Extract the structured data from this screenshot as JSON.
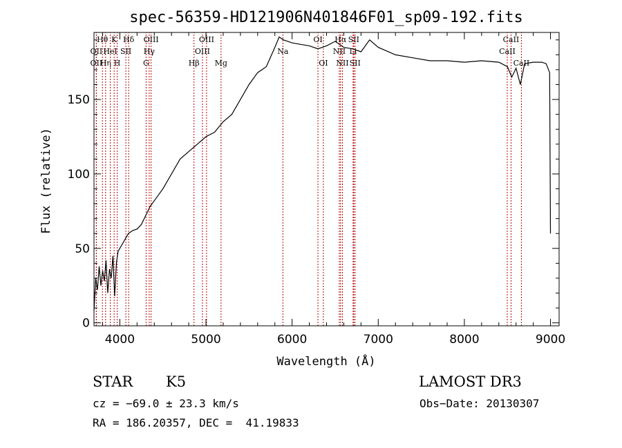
{
  "chart_data": {
    "type": "line",
    "title": "spec-56359-HD121906N401846F01_sp09-192.fits",
    "xlabel": "Wavelength (Å)",
    "ylabel": "Flux (relative)",
    "xlim": [
      3700,
      9100
    ],
    "ylim": [
      -2,
      195
    ],
    "xticks": [
      4000,
      5000,
      6000,
      7000,
      8000,
      9000
    ],
    "xtick_labels": [
      "4000",
      "5000",
      "6000",
      "7000",
      "8000",
      "9000"
    ],
    "yticks": [
      0,
      50,
      100,
      150
    ],
    "ytick_labels": [
      "0",
      "50",
      "100",
      "150"
    ],
    "grid": false,
    "series": [
      {
        "name": "flux",
        "x": [
          3700,
          3720,
          3740,
          3760,
          3780,
          3800,
          3820,
          3840,
          3860,
          3880,
          3900,
          3920,
          3940,
          3960,
          3980,
          4000,
          4050,
          4100,
          4150,
          4200,
          4250,
          4300,
          4350,
          4400,
          4450,
          4500,
          4600,
          4700,
          4800,
          4900,
          5000,
          5100,
          5200,
          5300,
          5400,
          5500,
          5600,
          5700,
          5800,
          5850,
          5900,
          5950,
          6000,
          6100,
          6200,
          6300,
          6400,
          6500,
          6600,
          6700,
          6800,
          6900,
          7000,
          7200,
          7400,
          7600,
          7800,
          8000,
          8200,
          8400,
          8500,
          8550,
          8600,
          8650,
          8700,
          8800,
          8900,
          8950,
          8990,
          9000
        ],
        "y": [
          8,
          30,
          22,
          38,
          25,
          35,
          28,
          42,
          20,
          36,
          30,
          45,
          18,
          40,
          48,
          50,
          55,
          60,
          62,
          63,
          66,
          72,
          78,
          82,
          86,
          90,
          100,
          110,
          115,
          120,
          125,
          128,
          135,
          140,
          150,
          160,
          168,
          172,
          185,
          192,
          190,
          189,
          188,
          187,
          186,
          184,
          186,
          189,
          185,
          184,
          182,
          190,
          185,
          180,
          178,
          176,
          176,
          175,
          176,
          175,
          172,
          165,
          171,
          160,
          174,
          175,
          175,
          174,
          168,
          60
        ]
      }
    ],
    "line_marks": [
      {
        "label": "Hθ",
        "x": 3798,
        "row": 1
      },
      {
        "label": "OII",
        "x": 3727,
        "row": 2
      },
      {
        "label": "OII",
        "x": 3727,
        "row": 3
      },
      {
        "label": "Hη",
        "x": 3835,
        "row": 3
      },
      {
        "label": "K",
        "x": 3934,
        "row": 1
      },
      {
        "label": "HeI",
        "x": 3889,
        "row": 2
      },
      {
        "label": "H",
        "x": 3969,
        "row": 3
      },
      {
        "label": "Hδ",
        "x": 4102,
        "row": 1
      },
      {
        "label": "SII",
        "x": 4070,
        "row": 2
      },
      {
        "label": "OIII",
        "x": 4363,
        "row": 1
      },
      {
        "label": "Hγ",
        "x": 4341,
        "row": 2
      },
      {
        "label": "G",
        "x": 4305,
        "row": 3
      },
      {
        "label": "OIII",
        "x": 5007,
        "row": 1
      },
      {
        "label": "OIII",
        "x": 4959,
        "row": 2
      },
      {
        "label": "Hβ",
        "x": 4861,
        "row": 3
      },
      {
        "label": "Mg",
        "x": 5175,
        "row": 3
      },
      {
        "label": "Na",
        "x": 5893,
        "row": 2
      },
      {
        "label": "OI",
        "x": 6300,
        "row": 1
      },
      {
        "label": "OI",
        "x": 6363,
        "row": 3
      },
      {
        "label": "Hα",
        "x": 6563,
        "row": 1
      },
      {
        "label": "NII",
        "x": 6548,
        "row": 2
      },
      {
        "label": "NII",
        "x": 6584,
        "row": 3
      },
      {
        "label": "SII",
        "x": 6716,
        "row": 1
      },
      {
        "label": "Li",
        "x": 6708,
        "row": 2
      },
      {
        "label": "SII",
        "x": 6731,
        "row": 3
      },
      {
        "label": "CaII",
        "x": 8542,
        "row": 1
      },
      {
        "label": "CaII",
        "x": 8498,
        "row": 2
      },
      {
        "label": "CaII",
        "x": 8662,
        "row": 3
      }
    ]
  },
  "info": {
    "object_class": "STAR",
    "subclass": "K5",
    "survey": "LAMOST DR3",
    "redshift": "cz = −69.0 ± 23.3 km/s",
    "obs_date": "Obs−Date: 20130307",
    "coords": "RA = 186.20357, DEC =  41.19833"
  }
}
